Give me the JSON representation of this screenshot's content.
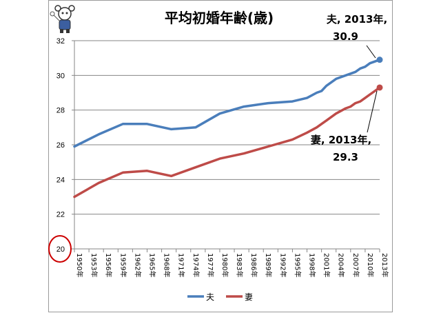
{
  "chart_data": {
    "type": "line",
    "title": "平均初婚年齢(歳)",
    "xlabel": "",
    "ylabel": "",
    "ylim": [
      20,
      32
    ],
    "yticks": [
      "20",
      "22",
      "24",
      "26",
      "28",
      "30",
      "32"
    ],
    "x_tick_labels": [
      "1950年",
      "1953年",
      "1956年",
      "1959年",
      "1962年",
      "1965年",
      "1968年",
      "1971年",
      "1974年",
      "1977年",
      "1980年",
      "1983年",
      "1986年",
      "1989年",
      "1992年",
      "1995年",
      "1998年",
      "2001年",
      "2004年",
      "2007年",
      "2010年",
      "2013年"
    ],
    "x": [
      1950,
      1955,
      1960,
      1965,
      1970,
      1975,
      1980,
      1985,
      1990,
      1995,
      1998,
      2000,
      2001,
      2002,
      2004,
      2006,
      2007,
      2008,
      2009,
      2010,
      2011,
      2012,
      2013
    ],
    "series": [
      {
        "name": "夫",
        "color": "#4a7ebb",
        "values": [
          25.9,
          26.6,
          27.2,
          27.2,
          26.9,
          27.0,
          27.8,
          28.2,
          28.4,
          28.5,
          28.7,
          29.0,
          29.1,
          29.4,
          29.8,
          30.0,
          30.1,
          30.2,
          30.4,
          30.5,
          30.7,
          30.8,
          30.9
        ]
      },
      {
        "name": "妻",
        "color": "#be4b48",
        "values": [
          23.0,
          23.8,
          24.4,
          24.5,
          24.2,
          24.7,
          25.2,
          25.5,
          25.9,
          26.3,
          26.7,
          27.0,
          27.2,
          27.4,
          27.8,
          28.1,
          28.2,
          28.4,
          28.5,
          28.7,
          28.9,
          29.1,
          29.3
        ]
      }
    ],
    "grid": true,
    "legend": "bottom",
    "annotations": [
      {
        "line1": "夫, 2013年,",
        "line2": "30.9"
      },
      {
        "line1": "妻, 2013年,",
        "line2": "29.3"
      }
    ],
    "highlighted_tick": "20"
  }
}
